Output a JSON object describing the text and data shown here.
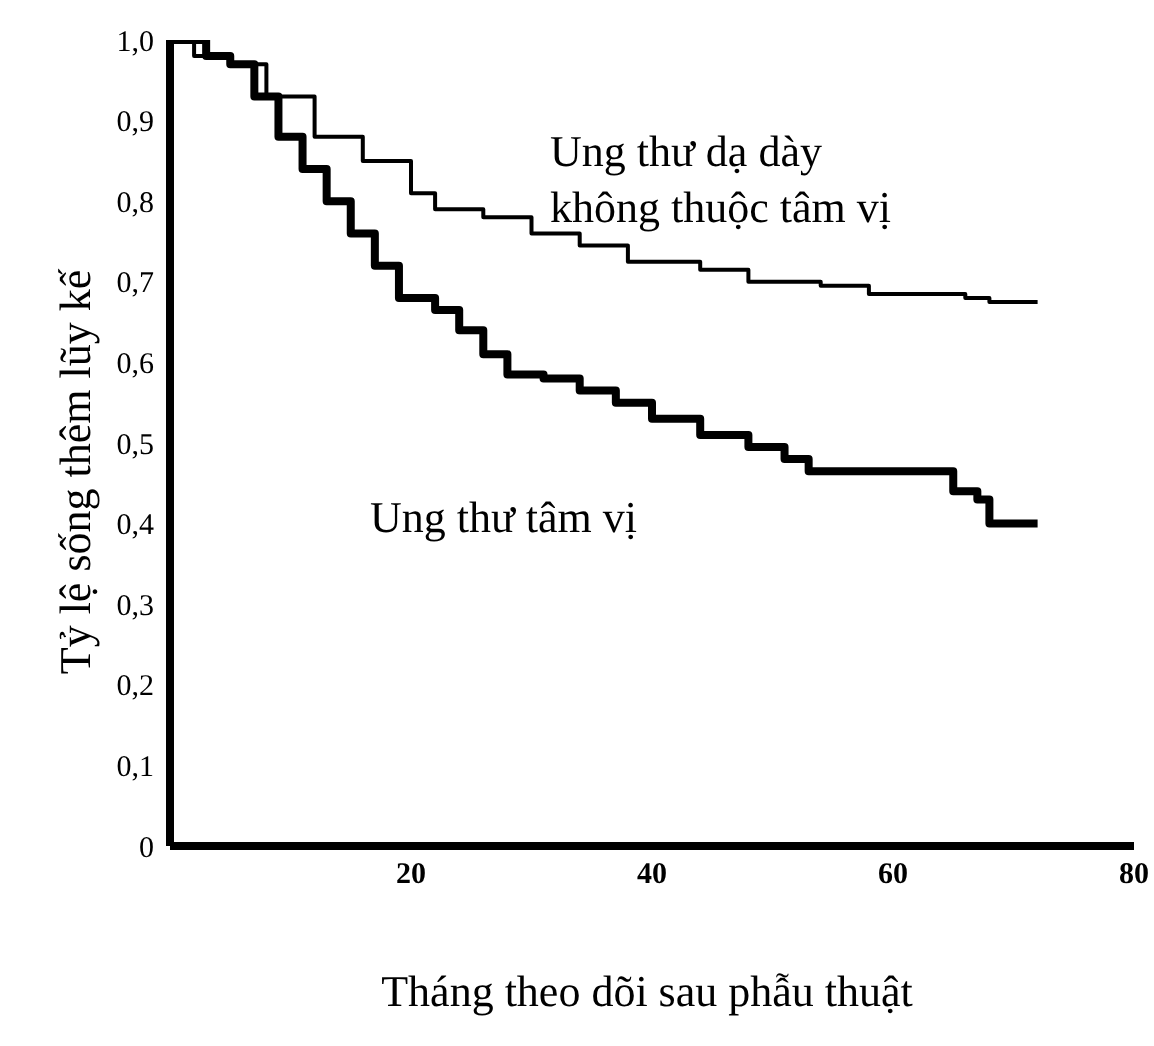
{
  "chart_data": {
    "type": "step",
    "xlabel": "Tháng theo dõi sau phẫu thuật",
    "ylabel": "Tỷ lệ sống thêm lũy kế",
    "xlim": [
      0,
      80
    ],
    "xticks": [
      20,
      40,
      60,
      80
    ],
    "ylim": [
      0,
      1
    ],
    "yticks": [
      {
        "value": 0,
        "label": "0"
      },
      {
        "value": 0.1,
        "label": "0,1"
      },
      {
        "value": 0.2,
        "label": "0,2"
      },
      {
        "value": 0.3,
        "label": "0,3"
      },
      {
        "value": 0.4,
        "label": "0,4"
      },
      {
        "value": 0.5,
        "label": "0,5"
      },
      {
        "value": 0.6,
        "label": "0,6"
      },
      {
        "value": 0.7,
        "label": "0,7"
      },
      {
        "value": 0.8,
        "label": "0,8"
      },
      {
        "value": 0.9,
        "label": "0,9"
      },
      {
        "value": 1,
        "label": "1,0"
      }
    ],
    "series": [
      {
        "name": "Ung thư dạ dày\nkhông thuộc tâm vị",
        "color": "#000000",
        "x": [
          0,
          2,
          5,
          8,
          12,
          16,
          20,
          22,
          26,
          30,
          34,
          38,
          44,
          48,
          54,
          58,
          66,
          68,
          72
        ],
        "values": [
          1,
          0.98,
          0.97,
          0.93,
          0.88,
          0.85,
          0.81,
          0.79,
          0.78,
          0.76,
          0.745,
          0.725,
          0.715,
          0.7,
          0.695,
          0.685,
          0.68,
          0.675,
          0.675
        ]
      },
      {
        "name": "Ung thư tâm vị",
        "color": "#000000",
        "x": [
          0,
          3,
          5,
          7,
          9,
          11,
          13,
          15,
          17,
          19,
          22,
          24,
          26,
          28,
          31,
          34,
          37,
          40,
          44,
          48,
          51,
          53,
          63,
          65,
          67,
          68,
          72
        ],
        "values": [
          1,
          0.98,
          0.97,
          0.93,
          0.88,
          0.84,
          0.8,
          0.76,
          0.72,
          0.68,
          0.665,
          0.64,
          0.61,
          0.585,
          0.58,
          0.565,
          0.55,
          0.53,
          0.51,
          0.495,
          0.48,
          0.465,
          0.465,
          0.44,
          0.43,
          0.4,
          0.4
        ]
      }
    ]
  }
}
